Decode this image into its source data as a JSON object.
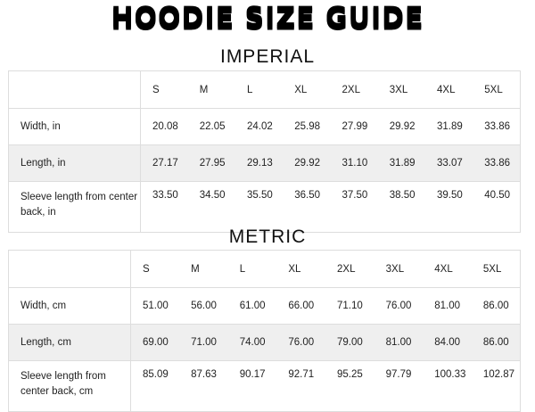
{
  "logo_text": "HOODIE SIZE GUIDE",
  "sizes": [
    "S",
    "M",
    "L",
    "XL",
    "2XL",
    "3XL",
    "4XL",
    "5XL"
  ],
  "imperial": {
    "title": "IMPERIAL",
    "rows": [
      {
        "label": "Width, in",
        "values": [
          "20.08",
          "22.05",
          "24.02",
          "25.98",
          "27.99",
          "29.92",
          "31.89",
          "33.86"
        ]
      },
      {
        "label": "Length, in",
        "values": [
          "27.17",
          "27.95",
          "29.13",
          "29.92",
          "31.10",
          "31.89",
          "33.07",
          "33.86"
        ]
      },
      {
        "label": "Sleeve length from center back, in",
        "values": [
          "33.50",
          "34.50",
          "35.50",
          "36.50",
          "37.50",
          "38.50",
          "39.50",
          "40.50"
        ]
      }
    ]
  },
  "metric": {
    "title": "METRIC",
    "rows": [
      {
        "label": "Width, cm",
        "values": [
          "51.00",
          "56.00",
          "61.00",
          "66.00",
          "71.10",
          "76.00",
          "81.00",
          "86.00"
        ]
      },
      {
        "label": "Length, cm",
        "values": [
          "69.00",
          "71.00",
          "74.00",
          "76.00",
          "79.00",
          "81.00",
          "84.00",
          "86.00"
        ]
      },
      {
        "label": "Sleeve length from center back, cm",
        "values": [
          "85.09",
          "87.63",
          "90.17",
          "92.71",
          "95.25",
          "97.79",
          "100.33",
          "102.87"
        ]
      }
    ]
  }
}
